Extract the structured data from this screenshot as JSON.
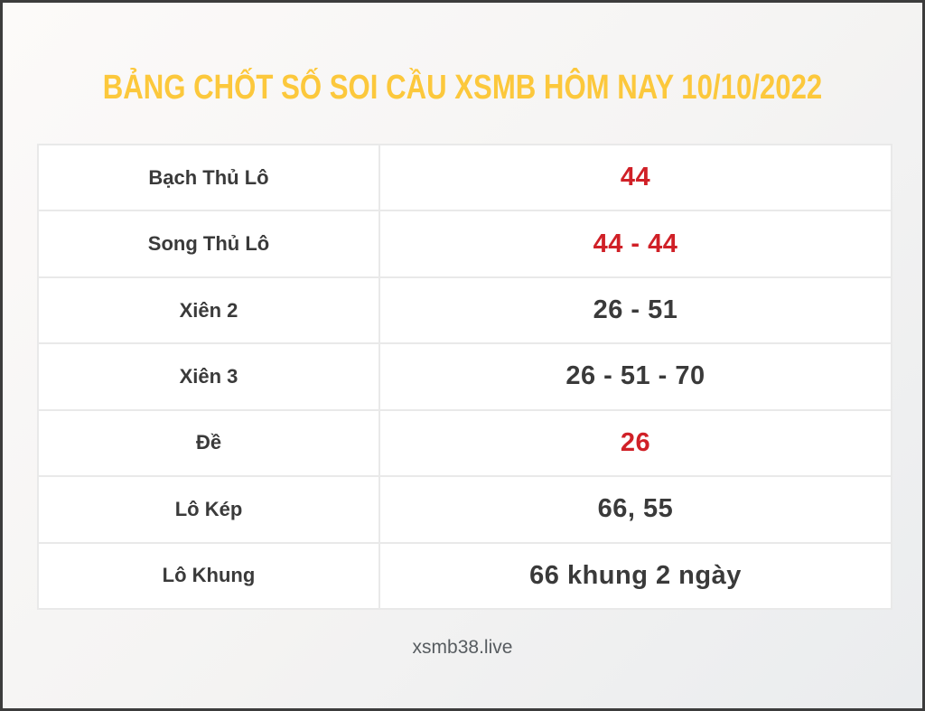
{
  "page": {
    "title": "BẢNG CHỐT SỐ SOI CẦU XSMB HÔM NAY 10/10/2022",
    "footer": "xsmb38.live"
  },
  "colors": {
    "title": "#fcc83c",
    "highlight": "#d02027",
    "text": "#3a3a3a",
    "footer_text": "#575c60",
    "cell_border": "#e9e9e9",
    "frame_border": "#3c3c3c"
  },
  "table": {
    "rows": [
      {
        "label": "Bạch Thủ Lô",
        "value": "44",
        "highlight": true
      },
      {
        "label": "Song Thủ Lô",
        "value": "44 - 44",
        "highlight": true
      },
      {
        "label": "Xiên 2",
        "value": "26 - 51",
        "highlight": false
      },
      {
        "label": "Xiên 3",
        "value": "26 - 51 - 70",
        "highlight": false
      },
      {
        "label": "Đề",
        "value": "26",
        "highlight": true
      },
      {
        "label": "Lô Kép",
        "value": "66, 55",
        "highlight": false
      },
      {
        "label": "Lô Khung",
        "value": "66 khung 2 ngày",
        "highlight": false
      }
    ]
  }
}
